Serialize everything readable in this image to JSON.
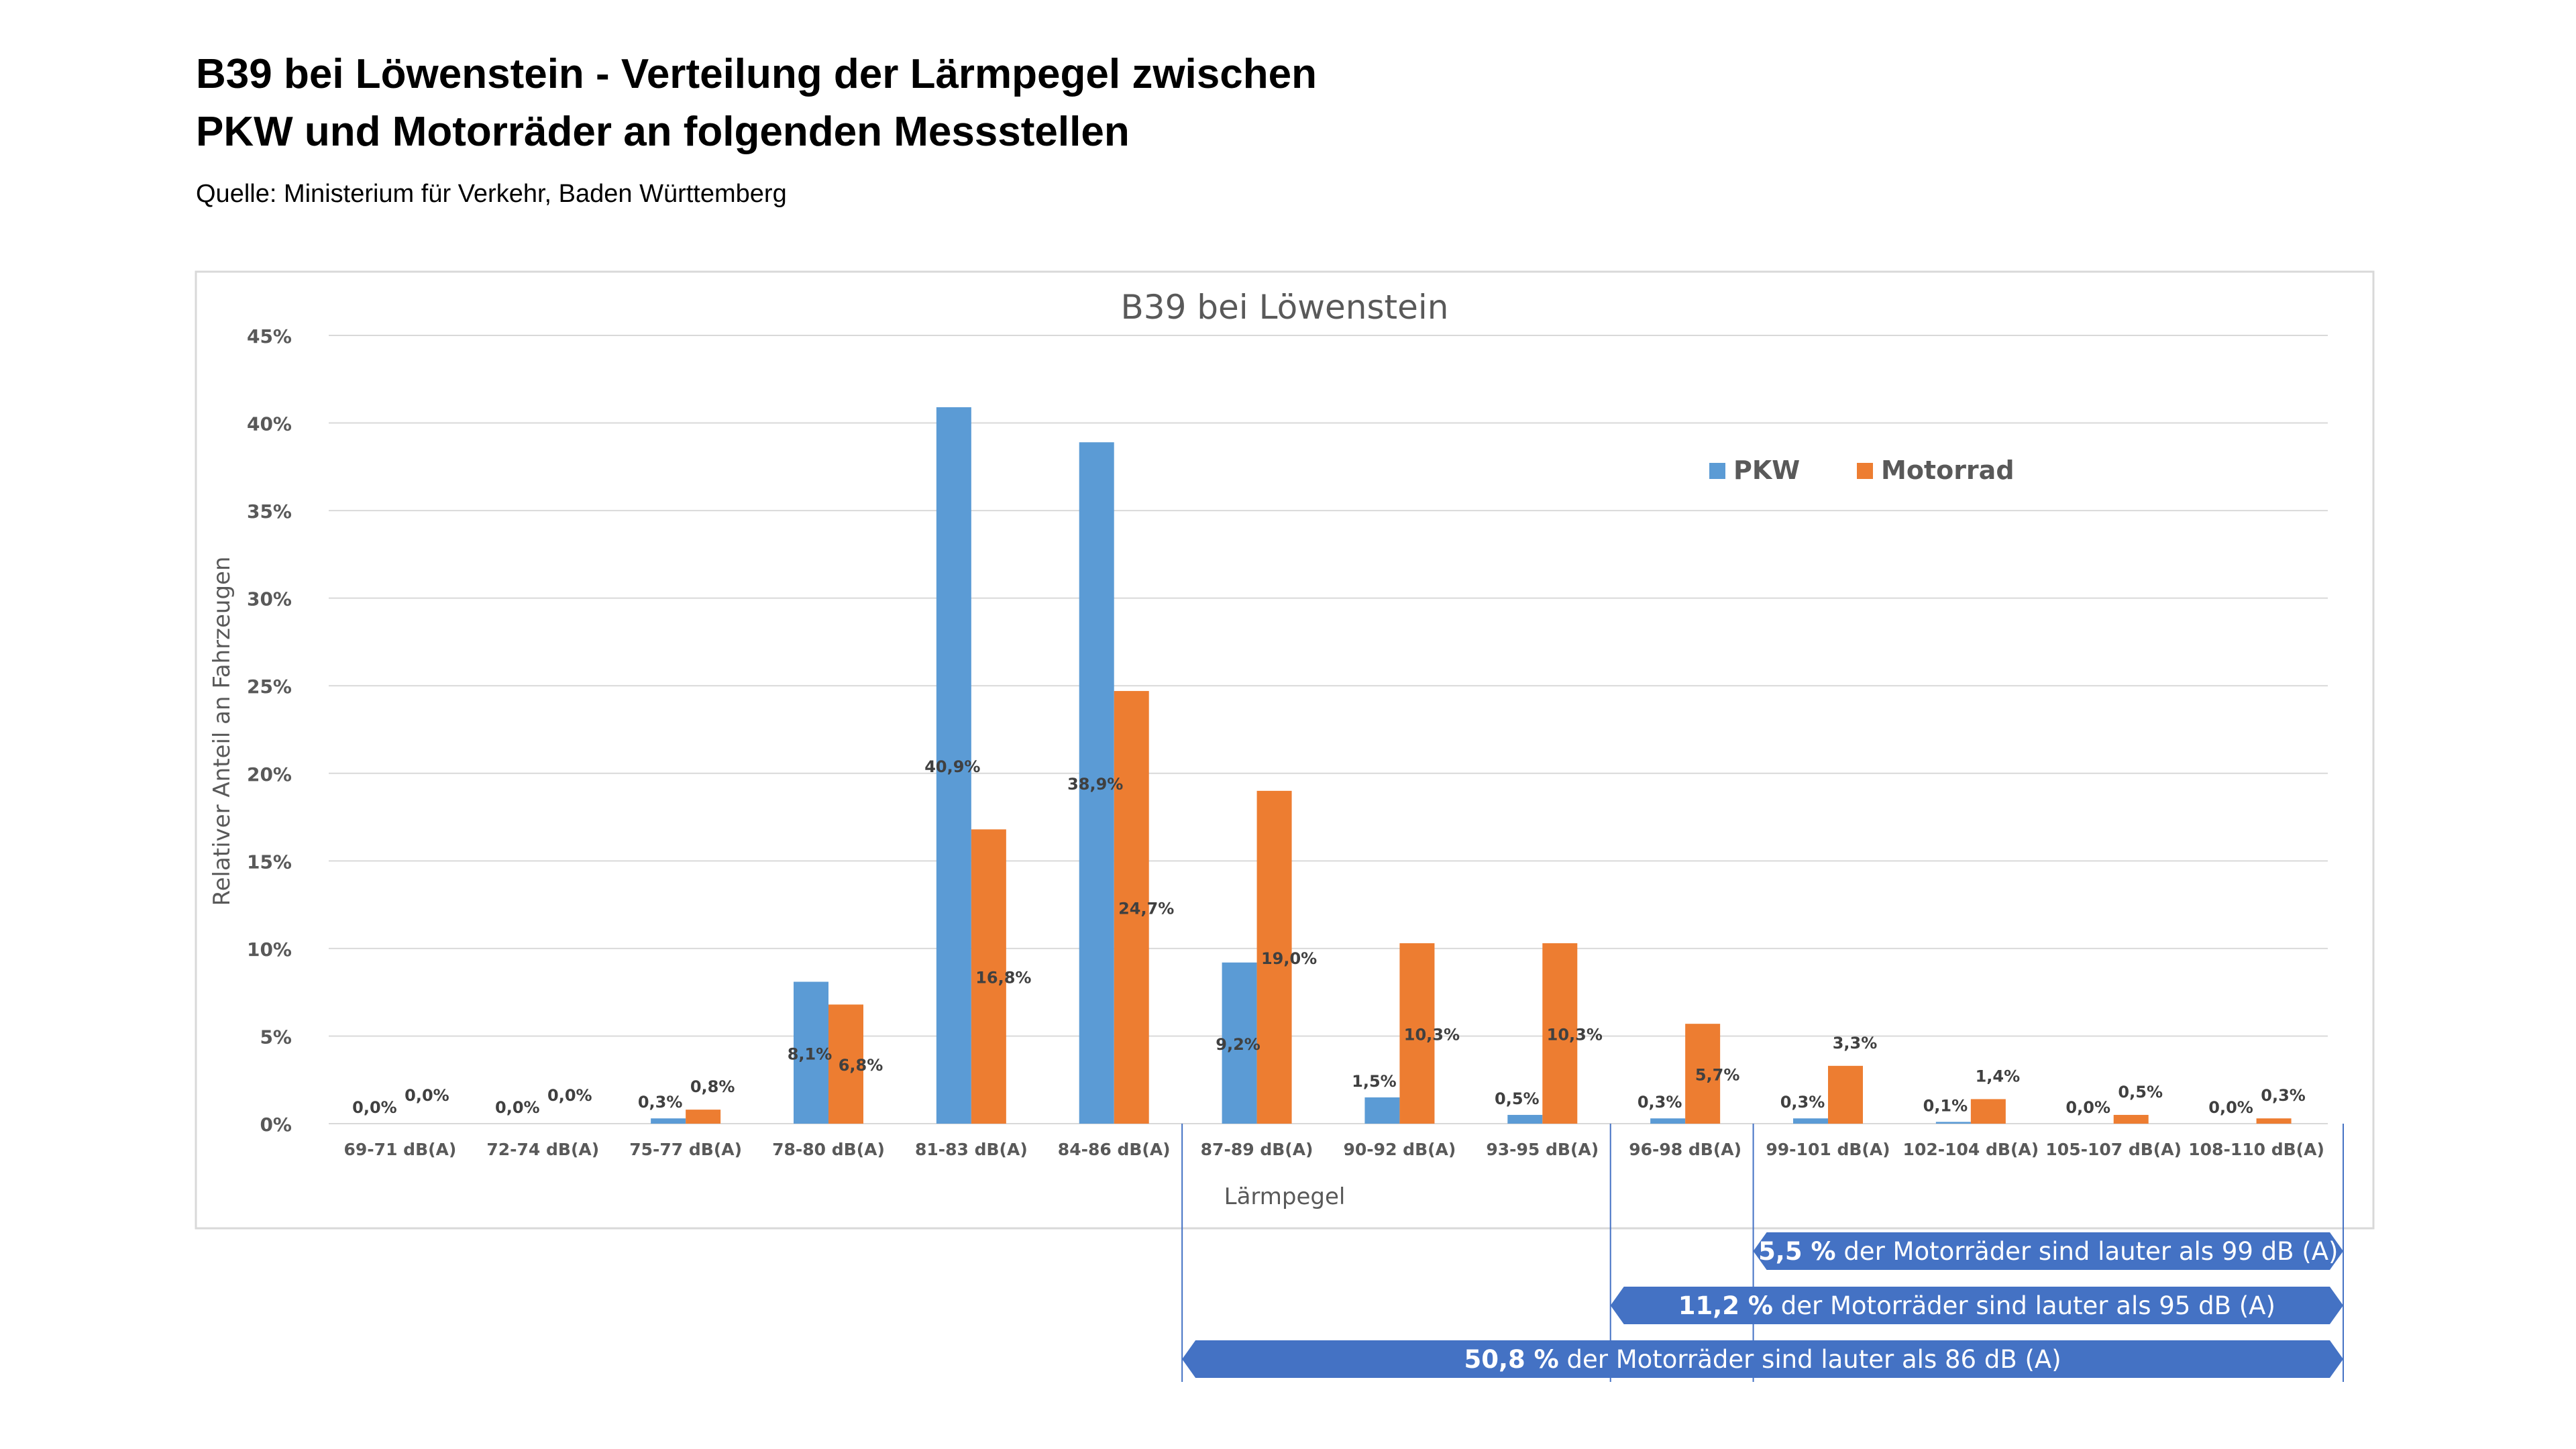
{
  "page": {
    "title_line1": "B39 bei Löwenstein - Verteilung der Lärmpegel zwischen",
    "title_line2": "PKW und Motorräder an folgenden Messstellen",
    "source": "Quelle: Ministerium für Verkehr, Baden Württemberg"
  },
  "chart_data": {
    "type": "bar",
    "title": "B39 bei Löwenstein",
    "xlabel": "Lärmpegel",
    "ylabel": "Relativer Anteil an Fahrzeugen",
    "ylim": [
      0,
      45
    ],
    "yticks": [
      "0%",
      "5%",
      "10%",
      "15%",
      "20%",
      "25%",
      "30%",
      "35%",
      "40%",
      "45%"
    ],
    "grid": true,
    "legend": "top-right",
    "categories": [
      "69-71 dB(A)",
      "72-74 dB(A)",
      "75-77 dB(A)",
      "78-80 dB(A)",
      "81-83 dB(A)",
      "84-86 dB(A)",
      "87-89 dB(A)",
      "90-92 dB(A)",
      "93-95 dB(A)",
      "96-98 dB(A)",
      "99-101 dB(A)",
      "102-104 dB(A)",
      "105-107 dB(A)",
      "108-110 dB(A)"
    ],
    "series": [
      {
        "name": "PKW",
        "color": "#5B9BD5",
        "values": [
          0.0,
          0.0,
          0.3,
          8.1,
          40.9,
          38.9,
          9.2,
          1.5,
          0.5,
          0.3,
          0.3,
          0.1,
          0.0,
          0.0
        ],
        "labels": [
          "0,0%",
          "0,0%",
          "0,3%",
          "8,1%",
          "40,9%",
          "38,9%",
          "9,2%",
          "1,5%",
          "0,5%",
          "0,3%",
          "0,3%",
          "0,1%",
          "0,0%",
          "0,0%"
        ]
      },
      {
        "name": "Motorrad",
        "color": "#ED7D31",
        "values": [
          0.0,
          0.0,
          0.8,
          6.8,
          16.8,
          24.7,
          19.0,
          10.3,
          10.3,
          5.7,
          3.3,
          1.4,
          0.5,
          0.3
        ],
        "labels": [
          "0,0%",
          "0,0%",
          "0,8%",
          "6,8%",
          "16,8%",
          "24,7%",
          "19,0%",
          "10,3%",
          "10,3%",
          "5,7%",
          "3,3%",
          "1,4%",
          "0,5%",
          "0,3%"
        ]
      }
    ],
    "annotations": [
      {
        "bold": "5,5 %",
        "text": " der Motorräder sind lauter als 99 dB (A)",
        "from_category": 10
      },
      {
        "bold": "11,2 %",
        "text": " der Motorräder sind lauter als 95 dB (A)",
        "from_category": 9
      },
      {
        "bold": "50,8 %",
        "text": " der Motorräder sind lauter als 86 dB (A)",
        "from_category": 6
      }
    ]
  },
  "colors": {
    "arrow": "#4472C4",
    "axis_text": "#595959",
    "grid": "#D9D9D9",
    "frame": "#D9D9D9"
  }
}
